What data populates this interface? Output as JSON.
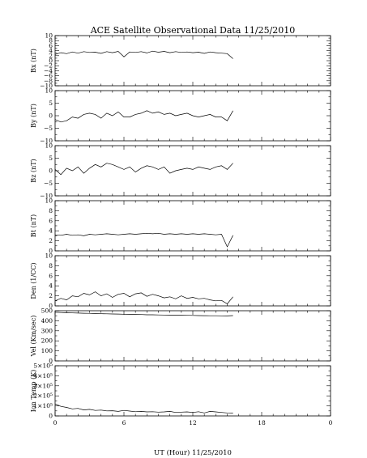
{
  "chart_data": {
    "type": "line",
    "title": "ACE Satellite Observational Data  11/25/2010",
    "xlabel": "UT (Hour)  11/25/2010",
    "xlim": [
      0,
      24
    ],
    "x_ticks": [
      "0",
      "6",
      "12",
      "18",
      "0"
    ],
    "grid": false,
    "panels": [
      {
        "ylabel": "Bx (nT)",
        "ylim": [
          -10,
          10
        ],
        "y_ticks": [
          "10",
          "8",
          "6",
          "4",
          "2",
          "0",
          "−2",
          "−4",
          "−6",
          "−8",
          "−10"
        ],
        "series": [
          {
            "x": [
              0,
              0.5,
              1,
              1.5,
              2,
              2.5,
              3,
              3.5,
              4,
              4.5,
              5,
              5.5,
              6,
              6.5,
              7,
              7.5,
              8,
              8.5,
              9,
              9.5,
              10,
              10.5,
              11,
              11.5,
              12,
              12.5,
              13,
              13.5,
              14,
              14.5,
              15,
              15.5
            ],
            "y": [
              2.5,
              3.2,
              2.8,
              3.5,
              3.0,
              3.6,
              3.3,
              3.4,
              2.9,
              3.6,
              3.2,
              3.7,
              1.5,
              3.5,
              3.3,
              3.6,
              3.1,
              3.8,
              3.4,
              3.7,
              3.2,
              3.6,
              3.3,
              3.5,
              3.2,
              3.4,
              2.9,
              3.5,
              3.2,
              3.0,
              2.8,
              0.8
            ]
          }
        ]
      },
      {
        "ylabel": "By (nT)",
        "ylim": [
          -10,
          10
        ],
        "y_ticks": [
          "10",
          "5",
          "0",
          "−5",
          "−10"
        ],
        "series": [
          {
            "x": [
              0,
              0.5,
              1,
              1.5,
              2,
              2.5,
              3,
              3.5,
              4,
              4.5,
              5,
              5.5,
              6,
              6.5,
              7,
              7.5,
              8,
              8.5,
              9,
              9.5,
              10,
              10.5,
              11,
              11.5,
              12,
              12.5,
              13,
              13.5,
              14,
              14.5,
              15,
              15.5
            ],
            "y": [
              -1.5,
              -2.5,
              -2.0,
              -0.5,
              -1.0,
              0.5,
              1.0,
              0.5,
              -1.0,
              1.0,
              0.0,
              1.5,
              -0.5,
              -0.5,
              0.5,
              1.0,
              2.0,
              1.0,
              1.5,
              0.5,
              1.0,
              0.0,
              0.5,
              1.0,
              0.0,
              -0.5,
              0.0,
              0.5,
              -0.5,
              -0.5,
              -2.0,
              2.0
            ]
          }
        ]
      },
      {
        "ylabel": "Bz (nT)",
        "ylim": [
          -10,
          10
        ],
        "y_ticks": [
          "10",
          "5",
          "0",
          "−5",
          "−10"
        ],
        "series": [
          {
            "x": [
              0,
              0.5,
              1,
              1.5,
              2,
              2.5,
              3,
              3.5,
              4,
              4.5,
              5,
              5.5,
              6,
              6.5,
              7,
              7.5,
              8,
              8.5,
              9,
              9.5,
              10,
              10.5,
              11,
              11.5,
              12,
              12.5,
              13,
              13.5,
              14,
              14.5,
              15,
              15.5
            ],
            "y": [
              0.5,
              -1.5,
              1.0,
              0.0,
              1.5,
              -1.0,
              1.0,
              2.5,
              1.5,
              3.0,
              2.5,
              1.5,
              0.5,
              1.5,
              -0.5,
              1.0,
              2.0,
              1.5,
              0.5,
              1.5,
              -1.0,
              0.0,
              0.5,
              1.0,
              0.5,
              1.5,
              1.0,
              0.5,
              1.5,
              2.0,
              0.5,
              3.0
            ]
          }
        ]
      },
      {
        "ylabel": "Bt (nT)",
        "ylim": [
          0,
          10
        ],
        "y_ticks": [
          "10",
          "8",
          "6",
          "4",
          "2",
          "0"
        ],
        "series": [
          {
            "x": [
              0,
              0.5,
              1,
              1.5,
              2,
              2.5,
              3,
              3.5,
              4,
              4.5,
              5,
              5.5,
              6,
              6.5,
              7,
              7.5,
              8,
              8.5,
              9,
              9.5,
              10,
              10.5,
              11,
              11.5,
              12,
              12.5,
              13,
              13.5,
              14,
              14.5,
              15,
              15.5
            ],
            "y": [
              3.2,
              3.1,
              3.3,
              3.1,
              3.2,
              3.0,
              3.3,
              3.2,
              3.3,
              3.4,
              3.3,
              3.2,
              3.3,
              3.4,
              3.3,
              3.4,
              3.5,
              3.4,
              3.5,
              3.3,
              3.4,
              3.3,
              3.4,
              3.3,
              3.4,
              3.3,
              3.4,
              3.3,
              3.2,
              3.3,
              0.8,
              3.1
            ]
          }
        ]
      },
      {
        "ylabel": "Den (1/CC)",
        "ylim": [
          0,
          10
        ],
        "y_ticks": [
          "10",
          "8",
          "6",
          "4",
          "2",
          "0"
        ],
        "series": [
          {
            "x": [
              0,
              0.5,
              1,
              1.5,
              2,
              2.5,
              3,
              3.5,
              4,
              4.5,
              5,
              5.5,
              6,
              6.5,
              7,
              7.5,
              8,
              8.5,
              9,
              9.5,
              10,
              10.5,
              11,
              11.5,
              12,
              12.5,
              13,
              13.5,
              14,
              14.5,
              15,
              15.5
            ],
            "y": [
              1.0,
              1.5,
              1.2,
              2.0,
              1.8,
              2.5,
              2.2,
              2.8,
              2.0,
              2.4,
              1.7,
              2.3,
              2.5,
              1.8,
              2.4,
              2.6,
              1.9,
              2.3,
              2.0,
              1.6,
              1.8,
              1.4,
              2.0,
              1.5,
              1.7,
              1.4,
              1.5,
              1.2,
              1.0,
              1.1,
              0.4,
              1.8
            ]
          }
        ]
      },
      {
        "ylabel": "Vel (Km/sec)",
        "ylim": [
          0,
          500
        ],
        "y_ticks": [
          "500",
          "400",
          "300",
          "200",
          "100",
          "0"
        ],
        "series": [
          {
            "x": [
              0,
              0.5,
              1,
              1.5,
              2,
              2.5,
              3,
              3.5,
              4,
              4.5,
              5,
              5.5,
              6,
              6.5,
              7,
              7.5,
              8,
              8.5,
              9,
              9.5,
              10,
              10.5,
              11,
              11.5,
              12,
              12.5,
              13,
              13.5,
              14,
              14.5,
              15,
              15.5
            ],
            "y": [
              485,
              482,
              480,
              478,
              477,
              475,
              474,
              472,
              470,
              469,
              468,
              467,
              465,
              464,
              463,
              462,
              460,
              460,
              458,
              457,
              456,
              455,
              455,
              454,
              453,
              452,
              451,
              450,
              450,
              449,
              448,
              452
            ]
          }
        ]
      },
      {
        "ylabel": "Ion Temp (K)",
        "ylim": [
          0,
          500000
        ],
        "y_ticks": [
          "5×10⁵",
          "4×10⁵",
          "3×10⁵",
          "2×10⁵",
          "1×10⁵",
          "0"
        ],
        "series": [
          {
            "x": [
              0,
              0.5,
              1,
              1.5,
              2,
              2.5,
              3,
              3.5,
              4,
              4.5,
              5,
              5.5,
              6,
              6.5,
              7,
              7.5,
              8,
              8.5,
              9,
              9.5,
              10,
              10.5,
              11,
              11.5,
              12,
              12.5,
              13,
              13.5,
              14,
              14.5,
              15,
              15.5
            ],
            "y": [
              120000,
              95000,
              85000,
              70000,
              75000,
              60000,
              65000,
              55000,
              58000,
              50000,
              52000,
              45000,
              55000,
              48000,
              42000,
              45000,
              40000,
              42000,
              38000,
              40000,
              45000,
              35000,
              38000,
              40000,
              35000,
              42000,
              30000,
              45000,
              40000,
              35000,
              30000,
              28000
            ]
          }
        ]
      }
    ]
  }
}
